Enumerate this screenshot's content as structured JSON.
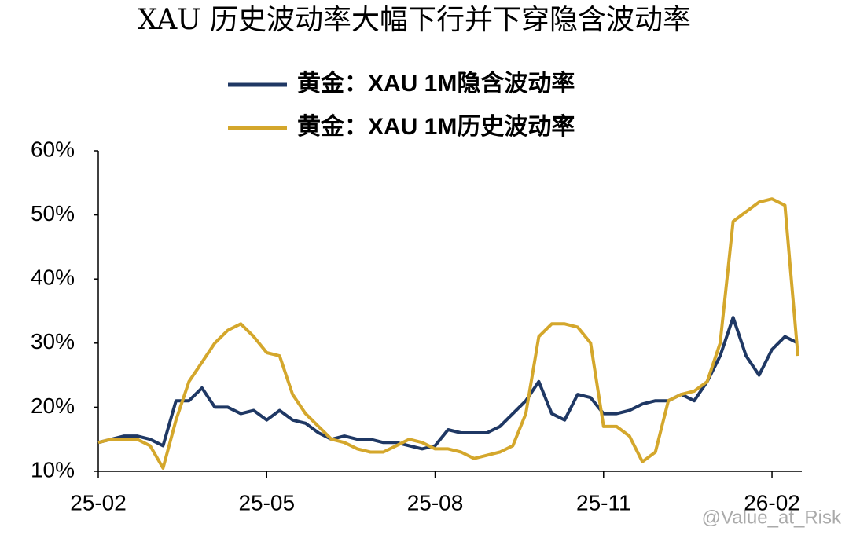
{
  "chart_data": {
    "type": "line",
    "title": "XAU 历史波动率大幅下行并下穿隐含波动率",
    "categories": [
      "25-02",
      null,
      null,
      null,
      null,
      null,
      null,
      null,
      null,
      null,
      null,
      null,
      null,
      "25-05",
      null,
      null,
      null,
      null,
      null,
      null,
      null,
      null,
      null,
      null,
      null,
      null,
      "25-08",
      null,
      null,
      null,
      null,
      null,
      null,
      null,
      null,
      null,
      null,
      null,
      null,
      "25-11",
      null,
      null,
      null,
      null,
      null,
      null,
      null,
      null,
      null,
      null,
      null,
      null,
      "26-02",
      null,
      null
    ],
    "series": [
      {
        "name": "黄金：XAU 1M隐含波动率",
        "color": "#1f3864",
        "values": [
          14.5,
          15,
          15.5,
          15.5,
          15,
          14,
          21,
          21,
          23,
          20,
          20,
          19,
          19.5,
          18,
          19.5,
          18,
          17.5,
          16,
          15,
          15.5,
          15,
          15,
          14.5,
          14.5,
          14,
          13.5,
          14,
          16.5,
          16,
          16,
          16,
          17,
          19,
          21,
          24,
          19,
          18,
          22,
          21.5,
          19,
          19,
          19.5,
          20.5,
          21,
          21,
          22,
          21,
          24,
          28,
          34,
          28,
          25,
          29,
          31,
          30
        ]
      },
      {
        "name": "黄金：XAU 1M历史波动率",
        "color": "#d4a72c",
        "values": [
          14.5,
          15,
          15,
          15,
          14,
          10.5,
          18,
          24,
          27,
          30,
          32,
          33,
          31,
          28.5,
          28,
          22,
          19,
          17,
          15,
          14.5,
          13.5,
          13,
          13,
          14,
          15,
          14.5,
          13.5,
          13.5,
          13,
          12,
          12.5,
          13,
          14,
          19,
          31,
          33,
          33,
          32.5,
          30,
          17,
          17,
          15.5,
          11.5,
          13,
          21,
          22,
          22.5,
          24,
          30,
          49,
          50.5,
          52,
          52.5,
          51.5,
          28
        ]
      }
    ],
    "ylim": [
      10,
      60
    ],
    "yticks": [
      {
        "value": 10,
        "label": "10%"
      },
      {
        "value": 20,
        "label": "20%"
      },
      {
        "value": 30,
        "label": "30%"
      },
      {
        "value": 40,
        "label": "40%"
      },
      {
        "value": 50,
        "label": "50%"
      },
      {
        "value": 60,
        "label": "60%"
      }
    ],
    "watermark": "@Value_at_Risk"
  }
}
